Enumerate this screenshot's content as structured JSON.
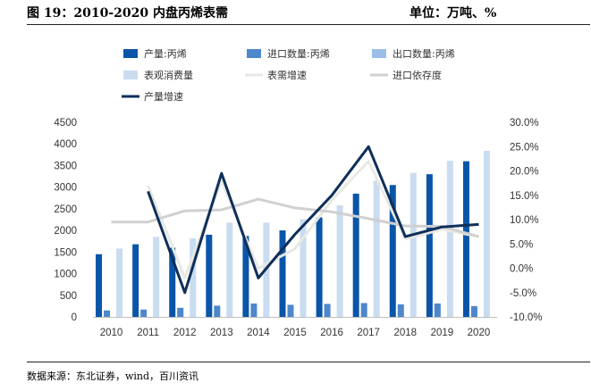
{
  "header": {
    "title": "图 19：2010-2020 内盘丙烯表需",
    "unit": "单位：万吨、%"
  },
  "footer": {
    "source": "数据来源：东北证券，wind，百川资讯"
  },
  "colors": {
    "production": "#0a55a8",
    "import": "#4d87cc",
    "export": "#9bbfe6",
    "consumption": "#c9dcf0",
    "demand_growth": "#e8e8e4",
    "import_dependence": "#d0d0d0",
    "production_growth": "#0f2f5a"
  },
  "chart_data": {
    "type": "bar",
    "categories": [
      "2010",
      "2011",
      "2012",
      "2013",
      "2014",
      "2015",
      "2016",
      "2017",
      "2018",
      "2019",
      "2020"
    ],
    "left_axis": {
      "ylim": [
        0,
        4500
      ],
      "ticks": [
        "0",
        "500",
        "1000",
        "1500",
        "2000",
        "2500",
        "3000",
        "3500",
        "4000",
        "4500"
      ]
    },
    "right_axis": {
      "ylim": [
        -10,
        30
      ],
      "ticks": [
        "-10.0%",
        "-5.0%",
        "0.0%",
        "5.0%",
        "10.0%",
        "15.0%",
        "20.0%",
        "25.0%",
        "30.0%"
      ]
    },
    "series": [
      {
        "name": "产量:丙烯",
        "kind": "bar",
        "axis": "left",
        "values": [
          1450,
          1680,
          1600,
          1900,
          1870,
          2000,
          2300,
          2850,
          3050,
          3300,
          3600
        ]
      },
      {
        "name": "进口数量:丙烯",
        "kind": "bar",
        "axis": "left",
        "values": [
          150,
          170,
          210,
          260,
          310,
          280,
          300,
          320,
          290,
          310,
          250
        ]
      },
      {
        "name": "出口数量:丙烯",
        "kind": "bar",
        "axis": "left",
        "values": [
          0,
          0,
          0,
          0,
          0,
          0,
          0,
          0,
          0,
          0,
          0
        ]
      },
      {
        "name": "表观消费量",
        "kind": "bar",
        "axis": "left",
        "values": [
          1580,
          1850,
          1820,
          2180,
          2180,
          2260,
          2580,
          3150,
          3330,
          3610,
          3840
        ]
      },
      {
        "name": "表需增速",
        "kind": "line",
        "axis": "right",
        "values": [
          null,
          17,
          -2,
          18,
          0,
          4,
          14,
          22,
          6,
          8,
          6.5
        ]
      },
      {
        "name": "进口依存度",
        "kind": "line",
        "axis": "right",
        "values": [
          9.5,
          9.5,
          11.8,
          12,
          14.2,
          12.4,
          11.6,
          10.2,
          8.7,
          8.6,
          6.5
        ]
      },
      {
        "name": "产量增速",
        "kind": "line",
        "axis": "right",
        "values": [
          null,
          15.8,
          -5,
          19.5,
          -2,
          7,
          15,
          25,
          6.5,
          8.5,
          9
        ]
      }
    ],
    "legend": [
      "产量:丙烯",
      "进口数量:丙烯",
      "出口数量:丙烯",
      "表观消费量",
      "表需增速",
      "进口依存度",
      "产量增速"
    ]
  }
}
